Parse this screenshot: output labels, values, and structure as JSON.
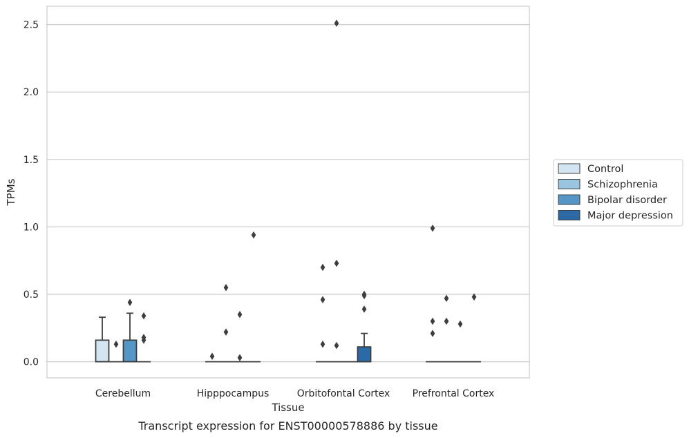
{
  "chart_data": {
    "type": "box",
    "title": "",
    "caption": "Transcript expression for ENST00000578886 by tissue",
    "xlabel": "Tissue",
    "ylabel": "TPMs",
    "ylim": [
      -0.12,
      2.65
    ],
    "yticks": [
      0.0,
      0.5,
      1.0,
      1.5,
      2.0,
      2.5
    ],
    "ytick_labels": [
      "0.0",
      "0.5",
      "1.0",
      "1.5",
      "2.0",
      "2.5"
    ],
    "grid": "horizontal",
    "legend_position": "right",
    "categories": [
      "Cerebellum",
      "Hipppocampus",
      "Orbitofontal Cortex",
      "Prefrontal Cortex"
    ],
    "series": [
      {
        "name": "Control",
        "color": "#d3e4f3",
        "boxes": [
          {
            "q1": 0.0,
            "median": 0.0,
            "q3": 0.16,
            "whisker_low": 0.0,
            "whisker_high": 0.33,
            "outliers": []
          },
          {
            "q1": 0.0,
            "median": 0.0,
            "q3": 0.0,
            "whisker_low": 0.0,
            "whisker_high": 0.0,
            "outliers": [
              0.04
            ]
          },
          {
            "q1": 0.0,
            "median": 0.0,
            "q3": 0.0,
            "whisker_low": 0.0,
            "whisker_high": 0.0,
            "outliers": [
              0.46,
              0.7,
              0.13
            ]
          },
          {
            "q1": 0.0,
            "median": 0.0,
            "q3": 0.0,
            "whisker_low": 0.0,
            "whisker_high": 0.0,
            "outliers": [
              0.99,
              0.3,
              0.21
            ]
          }
        ]
      },
      {
        "name": "Schizophrenia",
        "color": "#9ac5e0",
        "boxes": [
          {
            "q1": 0.0,
            "median": 0.0,
            "q3": 0.0,
            "whisker_low": 0.0,
            "whisker_high": 0.0,
            "outliers": [
              0.13
            ]
          },
          {
            "q1": 0.0,
            "median": 0.0,
            "q3": 0.0,
            "whisker_low": 0.0,
            "whisker_high": 0.0,
            "outliers": [
              0.55,
              0.22
            ]
          },
          {
            "q1": 0.0,
            "median": 0.0,
            "q3": 0.0,
            "whisker_low": 0.0,
            "whisker_high": 0.0,
            "outliers": [
              2.51,
              0.73,
              0.12
            ]
          },
          {
            "q1": 0.0,
            "median": 0.0,
            "q3": 0.0,
            "whisker_low": 0.0,
            "whisker_high": 0.0,
            "outliers": [
              0.47,
              0.3
            ]
          }
        ]
      },
      {
        "name": "Bipolar disorder",
        "color": "#5696c6",
        "boxes": [
          {
            "q1": 0.0,
            "median": 0.0,
            "q3": 0.16,
            "whisker_low": 0.0,
            "whisker_high": 0.36,
            "outliers": [
              0.44
            ]
          },
          {
            "q1": 0.0,
            "median": 0.0,
            "q3": 0.0,
            "whisker_low": 0.0,
            "whisker_high": 0.0,
            "outliers": [
              0.35,
              0.03
            ]
          },
          {
            "q1": 0.0,
            "median": 0.0,
            "q3": 0.0,
            "whisker_low": 0.0,
            "whisker_high": 0.0,
            "outliers": []
          },
          {
            "q1": 0.0,
            "median": 0.0,
            "q3": 0.0,
            "whisker_low": 0.0,
            "whisker_high": 0.0,
            "outliers": [
              0.28
            ]
          }
        ]
      },
      {
        "name": "Major depression",
        "color": "#2b6aa7",
        "boxes": [
          {
            "q1": 0.0,
            "median": 0.0,
            "q3": 0.0,
            "whisker_low": 0.0,
            "whisker_high": 0.0,
            "outliers": [
              0.34,
              0.18,
              0.16
            ]
          },
          {
            "q1": 0.0,
            "median": 0.0,
            "q3": 0.0,
            "whisker_low": 0.0,
            "whisker_high": 0.0,
            "outliers": [
              0.94
            ]
          },
          {
            "q1": 0.0,
            "median": 0.0,
            "q3": 0.11,
            "whisker_low": 0.0,
            "whisker_high": 0.21,
            "outliers": [
              0.5,
              0.49,
              0.39
            ]
          },
          {
            "q1": 0.0,
            "median": 0.0,
            "q3": 0.0,
            "whisker_low": 0.0,
            "whisker_high": 0.0,
            "outliers": [
              0.48
            ]
          }
        ]
      }
    ]
  }
}
